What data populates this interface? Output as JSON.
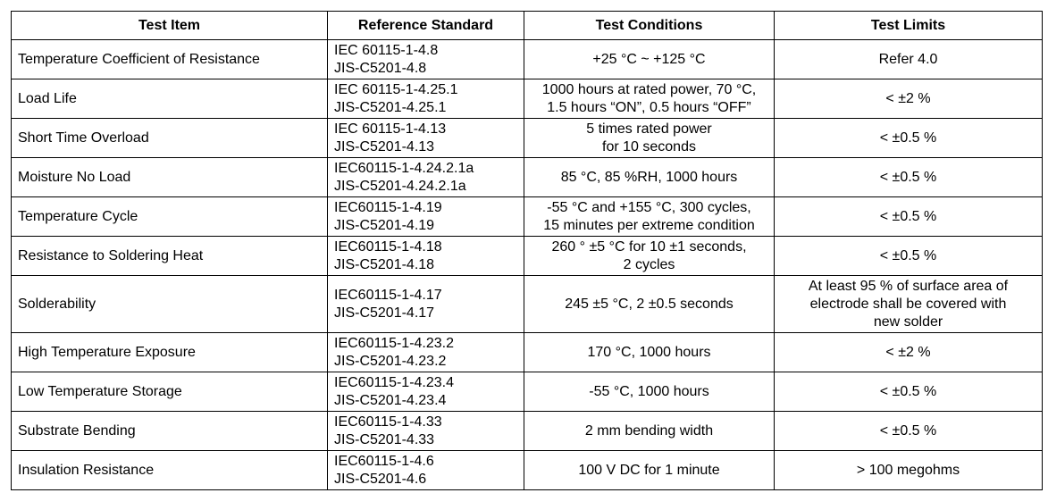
{
  "table": {
    "headers": [
      "Test Item",
      "Reference Standard",
      "Test Conditions",
      "Test Limits"
    ],
    "rows": [
      [
        [
          "Temperature Coefficient of Resistance"
        ],
        [
          "IEC 60115-1-4.8",
          "JIS-C5201-4.8"
        ],
        [
          "+25 °C ~ +125 °C"
        ],
        [
          "Refer 4.0"
        ]
      ],
      [
        [
          "Load Life"
        ],
        [
          "IEC 60115-1-4.25.1",
          "JIS-C5201-4.25.1"
        ],
        [
          "1000 hours at rated power, 70 °C,",
          "1.5 hours “ON”, 0.5 hours “OFF”"
        ],
        [
          "< ±2 %"
        ]
      ],
      [
        [
          "Short Time Overload"
        ],
        [
          "IEC 60115-1-4.13",
          "JIS-C5201-4.13"
        ],
        [
          "5 times rated power",
          "for 10 seconds"
        ],
        [
          "< ±0.5 %"
        ]
      ],
      [
        [
          "Moisture No Load"
        ],
        [
          "IEC60115-1-4.24.2.1a",
          "JIS-C5201-4.24.2.1a"
        ],
        [
          "85 °C, 85 %RH, 1000 hours"
        ],
        [
          "< ±0.5 %"
        ]
      ],
      [
        [
          "Temperature Cycle"
        ],
        [
          "IEC60115-1-4.19",
          "JIS-C5201-4.19"
        ],
        [
          "-55 °C and +155 °C, 300 cycles,",
          "15 minutes per extreme condition"
        ],
        [
          "< ±0.5 %"
        ]
      ],
      [
        [
          "Resistance to Soldering Heat"
        ],
        [
          "IEC60115-1-4.18",
          "JIS-C5201-4.18"
        ],
        [
          "260 ° ±5 °C for 10 ±1 seconds,",
          "2 cycles"
        ],
        [
          "< ±0.5 %"
        ]
      ],
      [
        [
          "Solderability"
        ],
        [
          "IEC60115-1-4.17",
          "JIS-C5201-4.17"
        ],
        [
          "245 ±5 °C, 2 ±0.5 seconds"
        ],
        [
          "At least 95 % of surface area of",
          "electrode shall be covered with",
          "new solder"
        ]
      ],
      [
        [
          "High Temperature Exposure"
        ],
        [
          "IEC60115-1-4.23.2",
          "JIS-C5201-4.23.2"
        ],
        [
          "170 °C, 1000 hours"
        ],
        [
          "< ±2 %"
        ]
      ],
      [
        [
          "Low Temperature Storage"
        ],
        [
          "IEC60115-1-4.23.4",
          "JIS-C5201-4.23.4"
        ],
        [
          "-55 °C, 1000 hours"
        ],
        [
          "< ±0.5 %"
        ]
      ],
      [
        [
          "Substrate Bending"
        ],
        [
          "IEC60115-1-4.33",
          "JIS-C5201-4.33"
        ],
        [
          "2 mm bending width"
        ],
        [
          "< ±0.5 %"
        ]
      ],
      [
        [
          "Insulation Resistance"
        ],
        [
          "IEC60115-1-4.6",
          "JIS-C5201-4.6"
        ],
        [
          "100 V DC for 1 minute"
        ],
        [
          "> 100 megohms"
        ]
      ]
    ]
  }
}
